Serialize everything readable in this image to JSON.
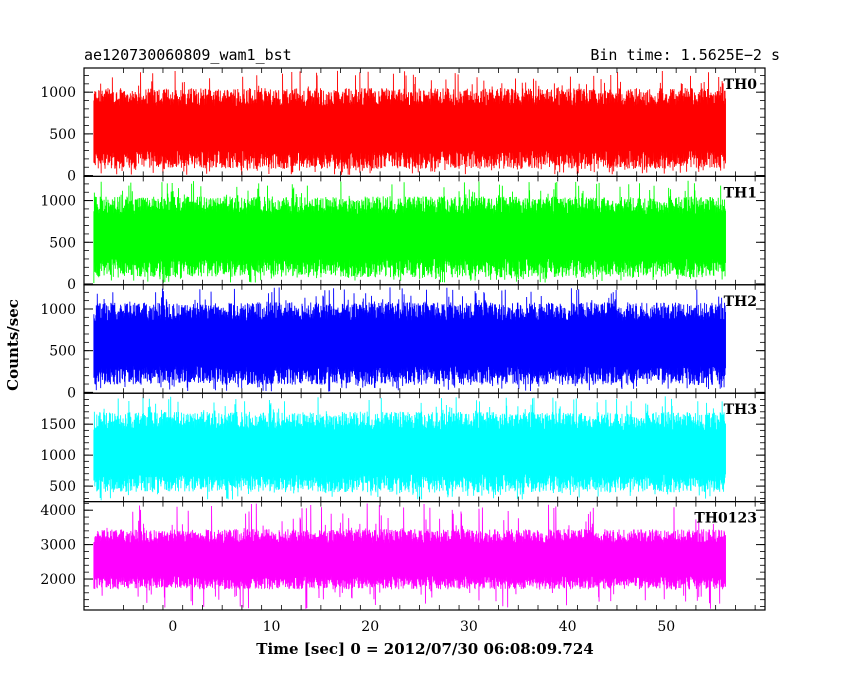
{
  "chart_data": {
    "type": "line",
    "title_left": "ae120730060809_wam1_bst",
    "title_right": "Bin time: 1.5625E−2 s",
    "xlabel": "Time [sec] 0 = 2012/07/30 06:08:09.724",
    "ylabel": "Counts/sec",
    "xlim": [
      -9,
      60
    ],
    "x_ticks": [
      0,
      10,
      20,
      30,
      40,
      50
    ],
    "x_tick_labels": [
      "0",
      "10",
      "20",
      "30",
      "40",
      "50"
    ],
    "data_x_range": [
      -8,
      56
    ],
    "grid": false,
    "panels": [
      {
        "name": "TH0",
        "color": "#ff0000",
        "ylim": [
          -10,
          1290
        ],
        "y_ticks": [
          0,
          500,
          1000
        ],
        "y_tick_labels": [
          "0",
          "500",
          "1000"
        ],
        "mean": 570,
        "low_typical": 80,
        "high_typical": 1050,
        "min": 5,
        "max": 1260
      },
      {
        "name": "TH1",
        "color": "#00ff00",
        "ylim": [
          -10,
          1290
        ],
        "y_ticks": [
          0,
          500,
          1000
        ],
        "y_tick_labels": [
          "0",
          "500",
          "1000"
        ],
        "mean": 580,
        "low_typical": 80,
        "high_typical": 1050,
        "min": 10,
        "max": 1240
      },
      {
        "name": "TH2",
        "color": "#0000ff",
        "ylim": [
          -10,
          1290
        ],
        "y_ticks": [
          0,
          500,
          1000
        ],
        "y_tick_labels": [
          "0",
          "500",
          "1000"
        ],
        "mean": 590,
        "low_typical": 90,
        "high_typical": 1080,
        "min": 10,
        "max": 1260
      },
      {
        "name": "TH3",
        "color": "#00ffff",
        "ylim": [
          250,
          2000
        ],
        "y_ticks": [
          500,
          1000,
          1500
        ],
        "y_tick_labels": [
          "500",
          "1000",
          "1500"
        ],
        "mean": 1050,
        "low_typical": 400,
        "high_typical": 1700,
        "min": 270,
        "max": 1950
      },
      {
        "name": "TH0123",
        "color": "#ff00ff",
        "ylim": [
          1100,
          4250
        ],
        "y_ticks": [
          2000,
          3000,
          4000
        ],
        "y_tick_labels": [
          "2000",
          "3000",
          "4000"
        ],
        "mean": 2550,
        "low_typical": 1700,
        "high_typical": 3450,
        "min": 1130,
        "max": 4200
      }
    ]
  }
}
